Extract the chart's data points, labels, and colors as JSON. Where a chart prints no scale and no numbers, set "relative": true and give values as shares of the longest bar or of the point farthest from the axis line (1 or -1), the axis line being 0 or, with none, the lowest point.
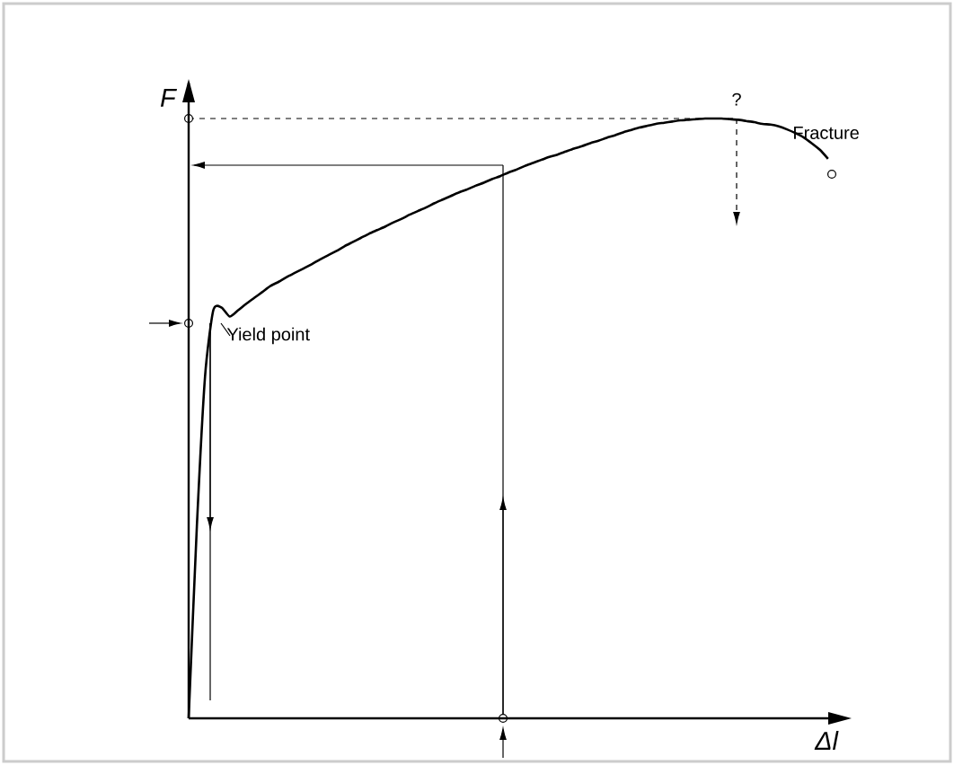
{
  "chart_data": {
    "type": "line",
    "relative": true,
    "xlabel": "Δl",
    "ylabel": "F",
    "marker": "none",
    "line_style": "solid",
    "categories": [
      null,
      null,
      null,
      null,
      null,
      null,
      null,
      null,
      null,
      null,
      null,
      null,
      null,
      null,
      null,
      null,
      null,
      null,
      null,
      null,
      null,
      null,
      null,
      null,
      null,
      null,
      null,
      null,
      null,
      null,
      null,
      null,
      null,
      null,
      null,
      null,
      null,
      null,
      null,
      null,
      null,
      null,
      null,
      null,
      null,
      null,
      null,
      null,
      null,
      null,
      null,
      null,
      null,
      null,
      null,
      null,
      null,
      null,
      null,
      null,
      null,
      null,
      null,
      null,
      null,
      null,
      null,
      null,
      null,
      null,
      null,
      null,
      null,
      null,
      null,
      null,
      null,
      null,
      null
    ],
    "series": [
      {
        "color": "#000000",
        "values": [
          0,
          0.32,
          0.57,
          0.68,
          0.685,
          0.67,
          0.68,
          0.691,
          0.701,
          0.711,
          0.721,
          0.728,
          0.736,
          0.743,
          0.75,
          0.757,
          0.765,
          0.772,
          0.779,
          0.787,
          0.794,
          0.801,
          0.808,
          0.814,
          0.82,
          0.827,
          0.833,
          0.84,
          0.846,
          0.852,
          0.859,
          0.865,
          0.871,
          0.877,
          0.882,
          0.888,
          0.893,
          0.899,
          0.904,
          0.91,
          0.915,
          0.921,
          0.926,
          0.931,
          0.936,
          0.94,
          0.945,
          0.95,
          0.954,
          0.959,
          0.963,
          0.968,
          0.972,
          0.977,
          0.981,
          0.985,
          0.988,
          0.991,
          0.993,
          0.995,
          0.997,
          0.998,
          0.999,
          1.0,
          1.0,
          1.0,
          0.999,
          0.998,
          0.996,
          0.994,
          0.991,
          0.99,
          0.987,
          0.982,
          0.976,
          0.969,
          0.959,
          0.948,
          0.933
        ]
      }
    ],
    "annotations": [
      "Yield point",
      "Fracture",
      "?"
    ]
  }
}
